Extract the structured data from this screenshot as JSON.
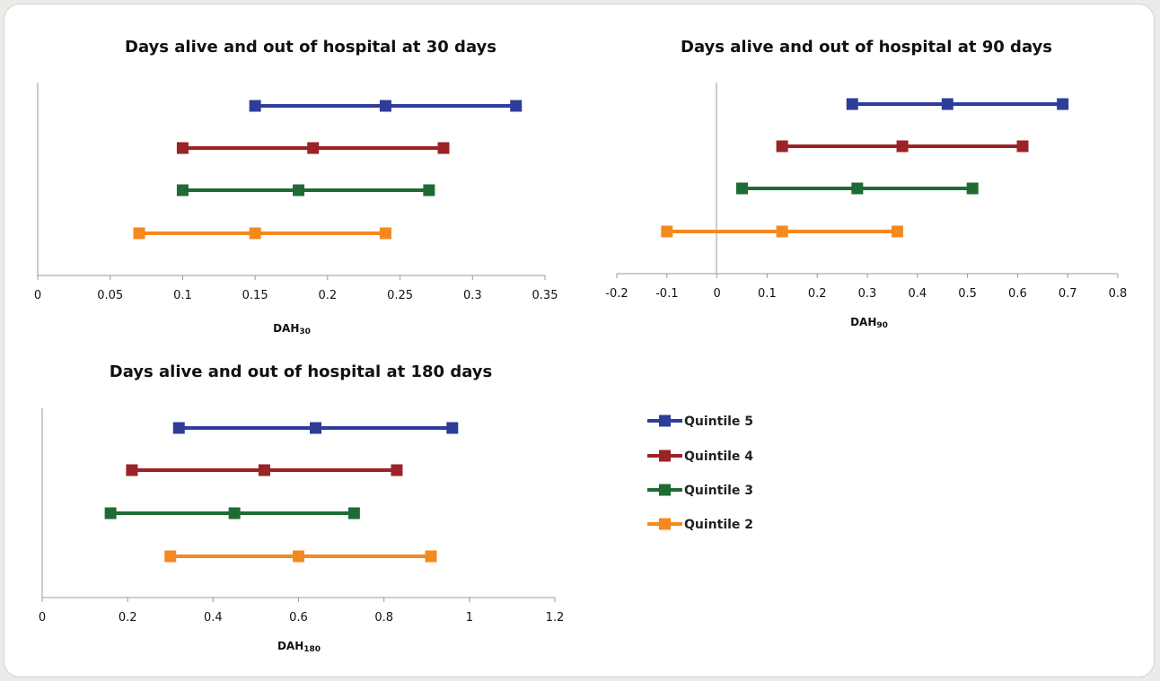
{
  "chart_data": [
    {
      "type": "line",
      "title": "Days alive and out of hospital at 30 days",
      "xlabel_main": "DAH",
      "xlabel_sub": "30",
      "xlim": [
        0,
        0.35
      ],
      "xticks": [
        "0",
        "0.05",
        "0.1",
        "0.15",
        "0.2",
        "0.25",
        "0.3",
        "0.35"
      ],
      "series": [
        {
          "name": "Quintile 5",
          "x": [
            0.15,
            0.24,
            0.33
          ]
        },
        {
          "name": "Quintile 4",
          "x": [
            0.1,
            0.19,
            0.28
          ]
        },
        {
          "name": "Quintile 3",
          "x": [
            0.1,
            0.18,
            0.27
          ]
        },
        {
          "name": "Quintile 2",
          "x": [
            0.07,
            0.15,
            0.24
          ]
        }
      ]
    },
    {
      "type": "line",
      "title": "Days alive and out of hospital at 90 days",
      "xlabel_main": "DAH",
      "xlabel_sub": "90",
      "xlim": [
        -0.2,
        0.8
      ],
      "xticks": [
        "-0.2",
        "-0.1",
        "0",
        "0.1",
        "0.2",
        "0.3",
        "0.4",
        "0.5",
        "0.6",
        "0.7",
        "0.8"
      ],
      "series": [
        {
          "name": "Quintile 5",
          "x": [
            0.27,
            0.46,
            0.69
          ]
        },
        {
          "name": "Quintile 4",
          "x": [
            0.13,
            0.37,
            0.61
          ]
        },
        {
          "name": "Quintile 3",
          "x": [
            0.05,
            0.28,
            0.51
          ]
        },
        {
          "name": "Quintile 2",
          "x": [
            -0.1,
            0.13,
            0.36
          ]
        }
      ]
    },
    {
      "type": "line",
      "title": "Days alive and out of hospital at 180 days",
      "xlabel_main": "DAH",
      "xlabel_sub": "180",
      "xlim": [
        0,
        1.2
      ],
      "xticks": [
        "0",
        "0.2",
        "0.4",
        "0.6",
        "0.8",
        "1",
        "1.2"
      ],
      "series": [
        {
          "name": "Quintile 5",
          "x": [
            0.32,
            0.64,
            0.96
          ]
        },
        {
          "name": "Quintile 4",
          "x": [
            0.21,
            0.52,
            0.83
          ]
        },
        {
          "name": "Quintile 3",
          "x": [
            0.16,
            0.45,
            0.73
          ]
        },
        {
          "name": "Quintile 2",
          "x": [
            0.3,
            0.6,
            0.91
          ]
        }
      ]
    }
  ],
  "legend": [
    {
      "name": "Quintile 5",
      "color": "#2e3c9a"
    },
    {
      "name": "Quintile 4",
      "color": "#9b2226"
    },
    {
      "name": "Quintile 3",
      "color": "#1f6b34"
    },
    {
      "name": "Quintile 2",
      "color": "#f4891f"
    }
  ]
}
